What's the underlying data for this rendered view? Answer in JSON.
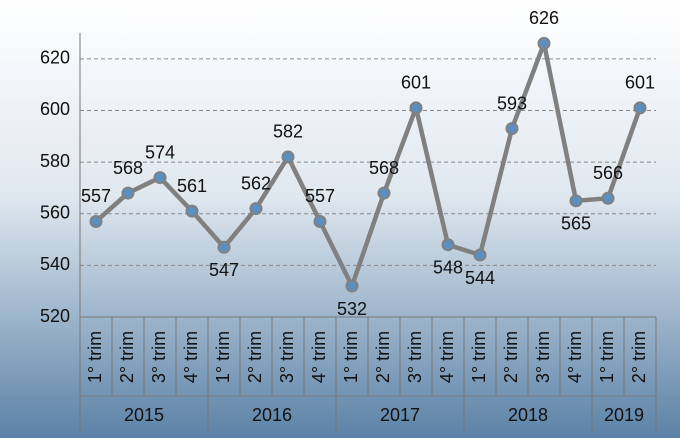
{
  "chart_data": {
    "type": "line",
    "groups": [
      {
        "name": "2015",
        "categories": [
          "1° trim",
          "2° trim",
          "3° trim",
          "4° trim"
        ]
      },
      {
        "name": "2016",
        "categories": [
          "1° trim",
          "2° trim",
          "3° trim",
          "4° trim"
        ]
      },
      {
        "name": "2017",
        "categories": [
          "1° trim",
          "2° trim",
          "3° trim",
          "4° trim"
        ]
      },
      {
        "name": "2018",
        "categories": [
          "1° trim",
          "2° trim",
          "3° trim",
          "4° trim"
        ]
      },
      {
        "name": "2019",
        "categories": [
          "1° trim",
          "2° trim"
        ]
      }
    ],
    "values": [
      557,
      568,
      574,
      561,
      547,
      562,
      582,
      557,
      532,
      568,
      601,
      548,
      544,
      593,
      626,
      565,
      566,
      601
    ],
    "color": "#808080",
    "marker_color": "#5b8fc0",
    "ylim": [
      520,
      630
    ],
    "yticks": [
      520,
      540,
      560,
      580,
      600,
      620
    ],
    "grid": true
  }
}
